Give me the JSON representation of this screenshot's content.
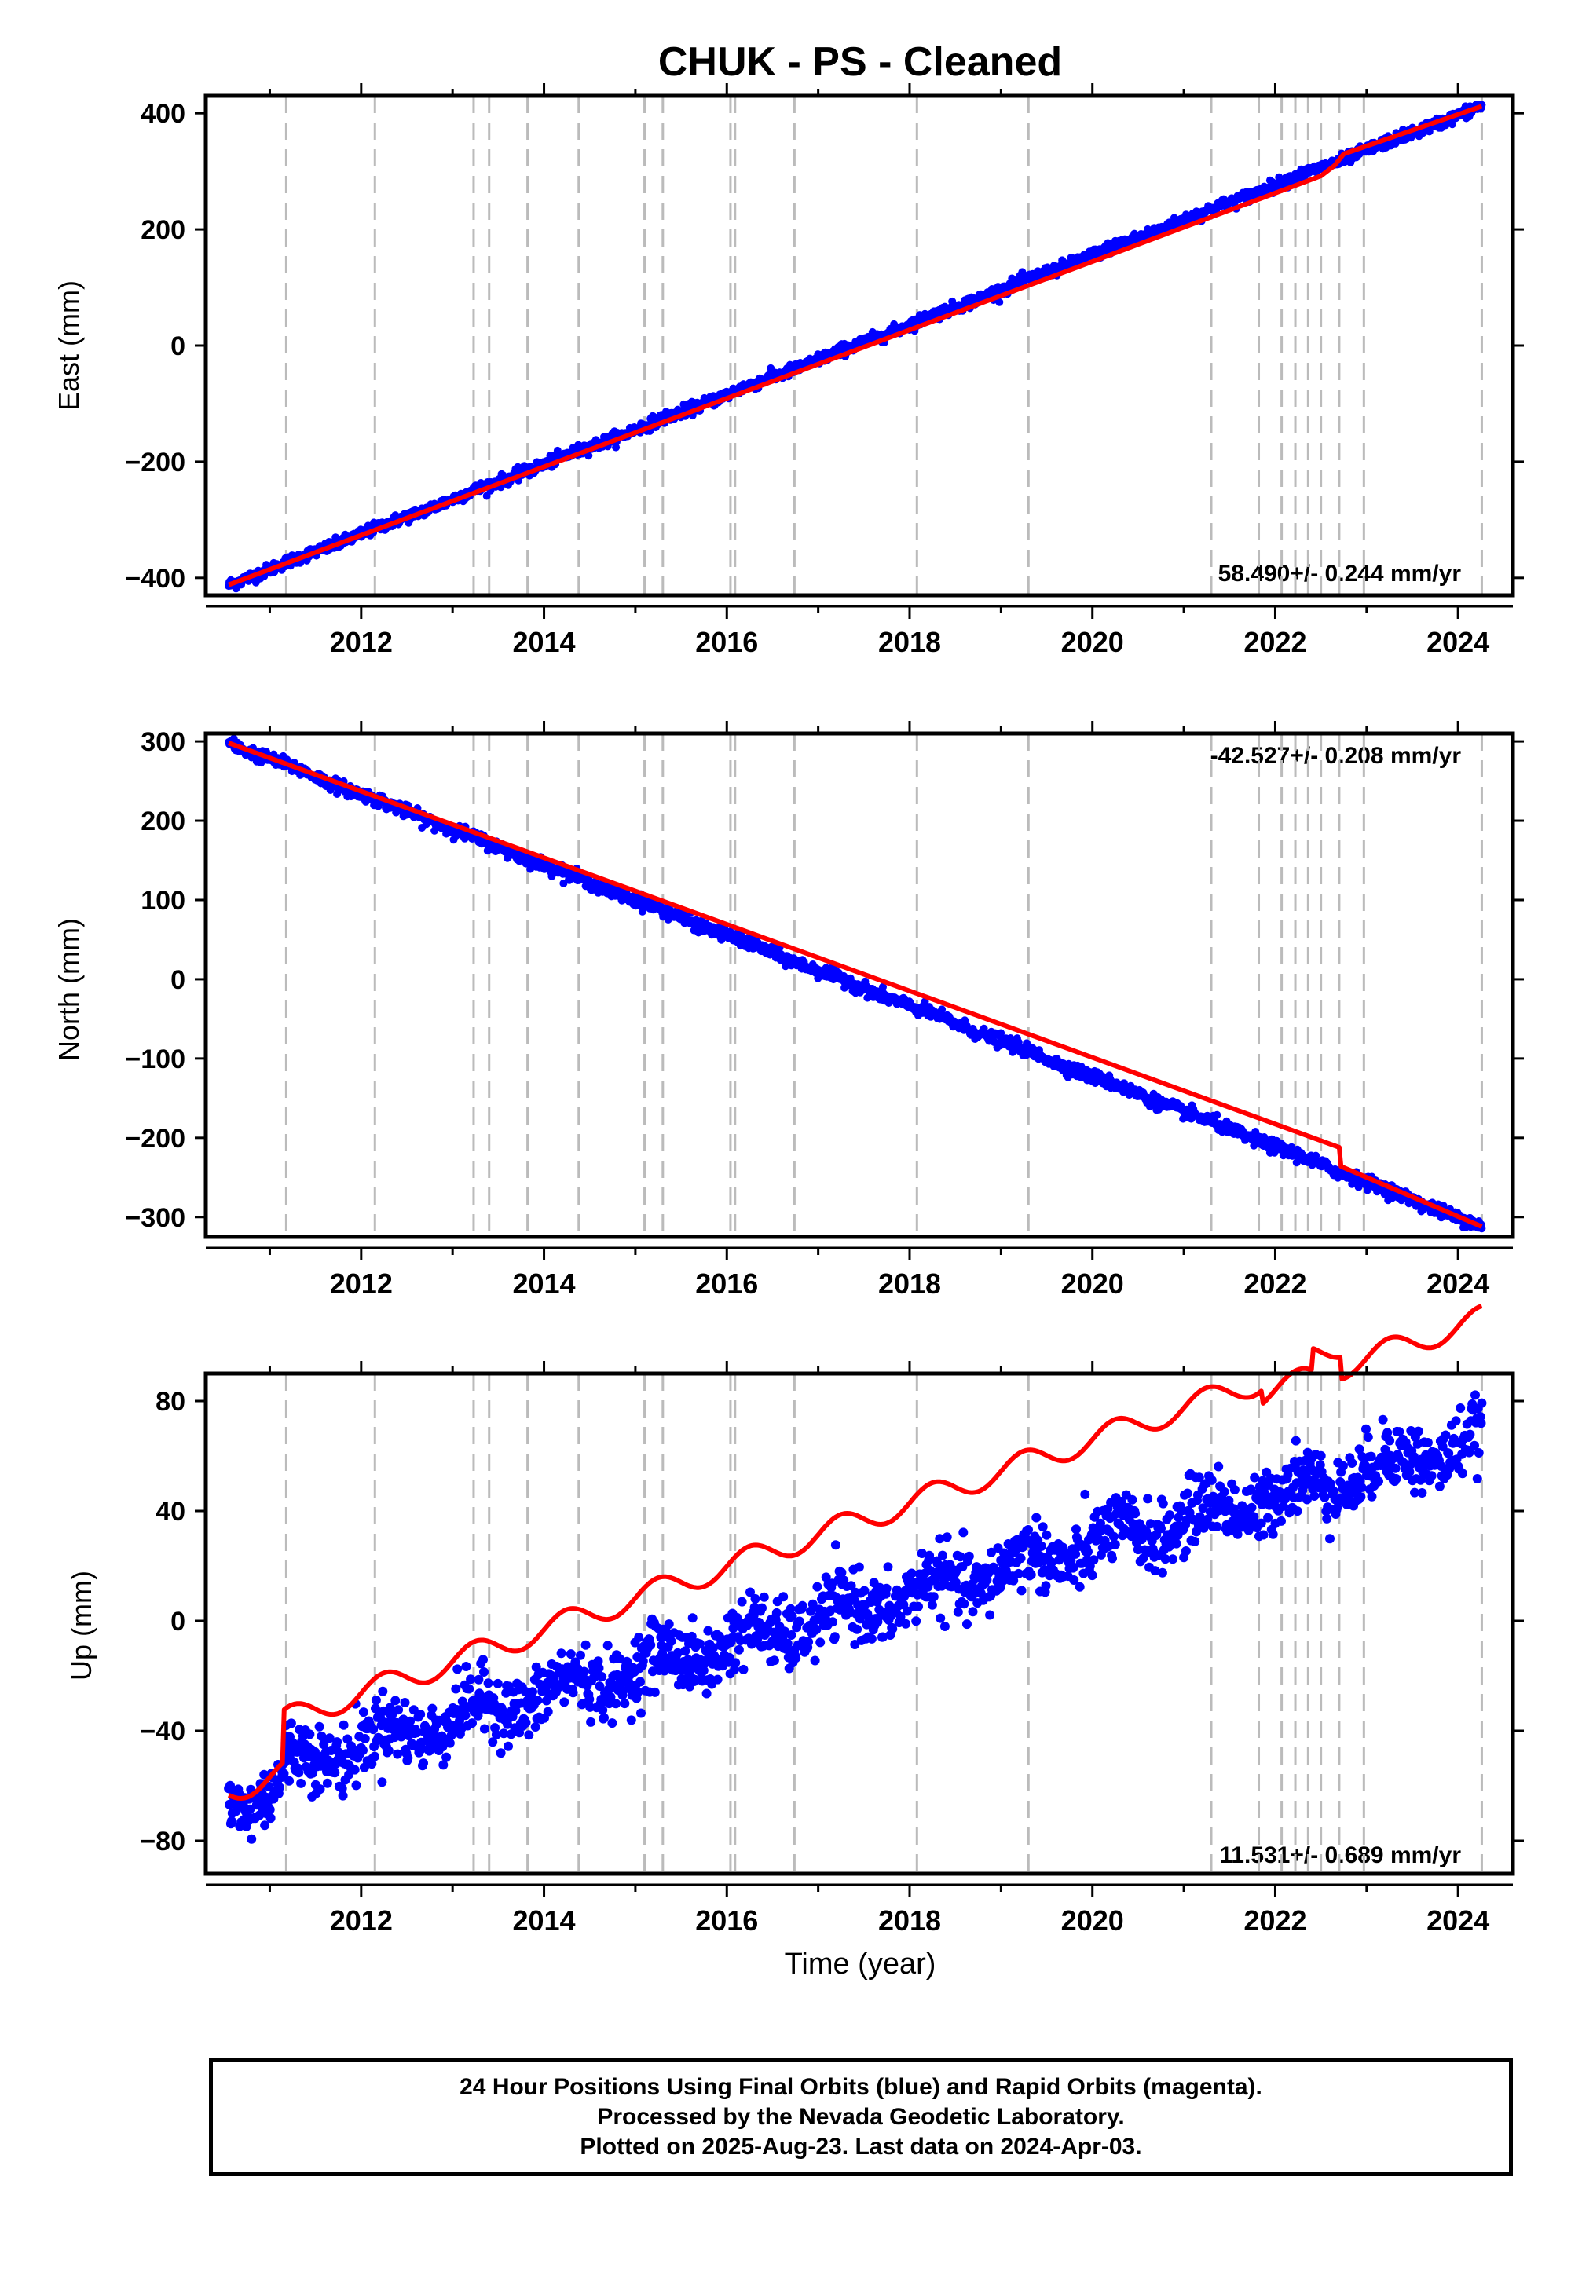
{
  "title": "CHUK  - PS - Cleaned",
  "x_axis_label": "Time (year)",
  "colors": {
    "final_orbits": "#0000ff",
    "model": "#ff0000",
    "event_lines": "#bbbbbb",
    "frame": "#000000"
  },
  "footer": {
    "line1": "24 Hour Positions Using Final Orbits (blue) and Rapid Orbits (magenta).",
    "line2": "Processed by the Nevada Geodetic Laboratory.",
    "line3": "Plotted on 2025-Aug-23. Last data on 2024-Apr-03."
  },
  "chart_data": [
    {
      "type": "scatter",
      "name": "east",
      "ylabel": "East (mm)",
      "xlim": [
        2010.3,
        2024.6
      ],
      "ylim": [
        -430,
        430
      ],
      "yticks": [
        -400,
        -200,
        0,
        200,
        400
      ],
      "xticks": [
        2012,
        2014,
        2016,
        2018,
        2020,
        2022,
        2024
      ],
      "grid": false,
      "rate_label": "58.490+/- 0.244 mm/yr",
      "rate_position": "bottom-right",
      "series": [
        {
          "name": "",
          "kind": "points",
          "x_start": 2010.55,
          "x_end": 2024.26,
          "y_start": -412,
          "y_end": 412,
          "scatter": 5,
          "seasonal_amp": 1
        },
        {
          "name": "",
          "kind": "model-line",
          "x": [
            2010.55,
            2022.5,
            2022.65,
            2022.75,
            2024.26
          ],
          "y": [
            -412,
            292,
            310,
            330,
            412
          ]
        }
      ]
    },
    {
      "type": "scatter",
      "name": "north",
      "ylabel": "North (mm)",
      "xlim": [
        2010.3,
        2024.6
      ],
      "ylim": [
        -325,
        310
      ],
      "yticks": [
        -300,
        -200,
        -100,
        0,
        100,
        200,
        300
      ],
      "xticks": [
        2012,
        2014,
        2016,
        2018,
        2020,
        2022,
        2024
      ],
      "grid": false,
      "rate_label": "-42.527+/- 0.208 mm/yr",
      "rate_position": "top-right",
      "series": [
        {
          "name": "",
          "kind": "points",
          "x_start": 2010.55,
          "x_end": 2024.26,
          "y_start": 298,
          "y_end": -312,
          "scatter": 4,
          "seasonal_amp": 1
        },
        {
          "name": "",
          "kind": "model-line",
          "x": [
            2010.55,
            2022.7,
            2022.72,
            2024.26
          ],
          "y": [
            298,
            -212,
            -236,
            -312
          ]
        }
      ]
    },
    {
      "type": "scatter",
      "name": "up",
      "ylabel": "Up (mm)",
      "xlim": [
        2010.3,
        2024.6
      ],
      "ylim": [
        -92,
        90
      ],
      "yticks": [
        -80,
        -40,
        0,
        40,
        80
      ],
      "xticks": [
        2012,
        2014,
        2016,
        2018,
        2020,
        2022,
        2024
      ],
      "grid": false,
      "rate_label": "11.531+/- 0.689 mm/yr",
      "rate_position": "bottom-right",
      "series": [
        {
          "name": "",
          "kind": "points",
          "x_start": 2010.55,
          "x_end": 2024.26,
          "y_start": -58,
          "y_end": 66,
          "scatter": 6,
          "seasonal_amp": 4.5
        },
        {
          "name": "",
          "kind": "model-line",
          "x_start": 2010.55,
          "x_end": 2024.26,
          "rate": 11.531,
          "seasonal_amp": 4.5,
          "offsets": [
            {
              "x": 2011.15,
              "dy": 15
            },
            {
              "x": 2021.85,
              "dy": -5
            },
            {
              "x": 2022.4,
              "dy": 8
            },
            {
              "x": 2022.72,
              "dy": -8
            }
          ],
          "y_start": -58
        }
      ]
    }
  ],
  "event_years": [
    2011.18,
    2012.15,
    2013.23,
    2013.4,
    2013.82,
    2014.38,
    2015.1,
    2015.3,
    2016.04,
    2016.09,
    2016.74,
    2018.08,
    2019.3,
    2021.3,
    2021.82,
    2022.07,
    2022.22,
    2022.36,
    2022.5,
    2022.7,
    2022.97,
    2024.26
  ]
}
